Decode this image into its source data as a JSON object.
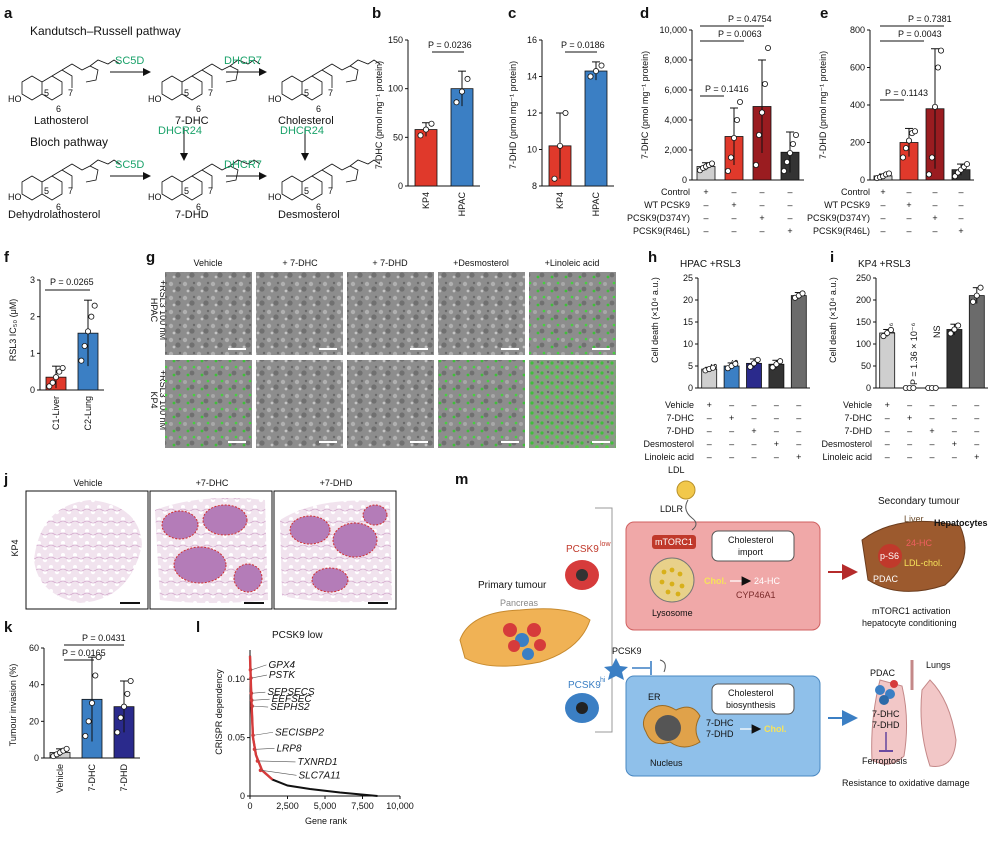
{
  "panels": {
    "a": {
      "label": "a",
      "kr_title": "Kandutsch–Russell pathway",
      "bloch_title": "Bloch pathway",
      "enzymes": {
        "sc5d_top": "SC5D",
        "dhcr7_top": "DHCR7",
        "dhcr24_left": "DHCR24",
        "dhcr24_right": "DHCR24",
        "sc5d_bottom": "SC5D",
        "dhcr7_bottom": "DHCR7"
      },
      "compounds": {
        "lathosterol": "Lathosterol",
        "dhc": "7-DHC",
        "cholesterol": "Cholesterol",
        "dehydrolathosterol": "Dehydrolathosterol",
        "dhd": "7-DHD",
        "desmosterol": "Desmosterol"
      },
      "ho": "HO",
      "ring_numbers": [
        "5",
        "6",
        "7"
      ]
    },
    "b": {
      "label": "b",
      "ylabel": "7-DHC (pmol mg⁻¹ protein)",
      "p": "P = 0.0236"
    },
    "c": {
      "label": "c",
      "ylabel": "7-DHD (pmol mg⁻¹ protein)",
      "p": "P = 0.0186"
    },
    "d": {
      "label": "d",
      "ylabel": "7-DHC (pmol mg⁻¹ protein)",
      "p1": "P = 0.4754",
      "p2": "P = 0.0063",
      "p3": "P = 0.1416",
      "rows": [
        "Control",
        "WT PCSK9",
        "PCSK9(D374Y)",
        "PCSK9(R46L)"
      ]
    },
    "e": {
      "label": "e",
      "ylabel": "7-DHD (pmol mg⁻¹ protein)",
      "p1": "P = 0.7381",
      "p2": "P = 0.0043",
      "p3": "P = 0.1143",
      "rows": [
        "Control",
        "WT PCSK9",
        "PCSK9(D374Y)",
        "PCSK9(R46L)"
      ]
    },
    "f": {
      "label": "f",
      "ylabel": "RSL3 IC₅₀ (μM)",
      "p": "P = 0.0265"
    },
    "g": {
      "label": "g",
      "cols": [
        "Vehicle",
        "+ 7-DHC",
        "+ 7-DHD",
        "+Desmosterol",
        "+Linoleic acid"
      ],
      "row1": "HPAC",
      "row1b": "+RSL3 100 nM",
      "row2": "KP4",
      "row2b": "+RSL3 100 nM"
    },
    "h": {
      "label": "h",
      "title": "HPAC +RSL3",
      "ylabel": "Cell death (×10⁴ a.u.)",
      "ns": "NS",
      "pval": "P = 5.84 × 10⁻⁶",
      "rows": [
        "Vehicle",
        "7-DHC",
        "7-DHD",
        "Desmosterol",
        "Linoleic acid"
      ]
    },
    "i": {
      "label": "i",
      "title": "KP4 +RSL3",
      "ylabel": "Cell death (×10⁴ a.u.)",
      "ns": "NS",
      "p1": "P = 1.38 × 10⁻⁶",
      "p2": "P = 1.36 × 10⁻⁶",
      "p3": "P = 4.07 × 10⁻⁵",
      "rows": [
        "Vehicle",
        "7-DHC",
        "7-DHD",
        "Desmosterol",
        "Linoleic acid"
      ]
    },
    "j": {
      "label": "j",
      "cols": [
        "Vehicle",
        "+7-DHC",
        "+7-DHD"
      ],
      "row": "KP4"
    },
    "k": {
      "label": "k",
      "ylabel": "Tumour invasion (%)",
      "p1": "P = 0.0431",
      "p2": "P = 0.0165"
    },
    "l": {
      "label": "l",
      "title": "PCSK9 low",
      "ylabel": "CRISPR dependency",
      "xlabel": "Gene rank",
      "genes": [
        "GPX4",
        "PSTK",
        "SEPSECS",
        "EEFSEC",
        "SEPHS2",
        "SECISBP2",
        "LRP8",
        "TXNRD1",
        "SLC7A11"
      ]
    },
    "m": {
      "label": "m",
      "ldl": "LDL",
      "ldlr": "LDLR",
      "pcsk9_low": "PCSK9",
      "pcsk9_low_sup": "low",
      "mtorc1": "mTORC1",
      "chol_import": "Cholesterol",
      "chol_import2": "import",
      "chol": "Chol.",
      "hc24": "24-HC",
      "cyp": "CYP46A1",
      "lysosome": "Lysosome",
      "secondary": "Secondary tumour",
      "liver": "Liver",
      "hepatocytes": "Hepatocytes",
      "ps6": "p-S6",
      "hc24b": "24-HC",
      "ldlchol": "LDL-chol.",
      "pdac1": "PDAC",
      "mtor_act": "mTORC1 activation",
      "hep_cond": "hepatocyte conditioning",
      "primary": "Primary tumour",
      "pancreas": "Pancreas",
      "pcsk9": "PCSK9",
      "pcsk9_hi": "PCSK9",
      "pcsk9_hi_sup": "hi",
      "er": "ER",
      "chol_bio": "Cholesterol",
      "chol_bio2": "biosynthesis",
      "dhc": "7-DHC",
      "dhd": "7-DHD",
      "chol2": "Chol.",
      "nucleus": "Nucleus",
      "lungs": "Lungs",
      "pdac2": "PDAC",
      "ldhc": "7-DHC",
      "ldhd": "7-DHD",
      "ferroptosis": "Ferroptosis",
      "resistance": "Resistance to oxidative damage"
    }
  },
  "chart_data": [
    {
      "id": "b",
      "type": "bar",
      "categories": [
        "KP4",
        "HPAC"
      ],
      "values": [
        58,
        100
      ],
      "errors": [
        7,
        18
      ],
      "points": [
        [
          52,
          58,
          64
        ],
        [
          86,
          97,
          110
        ]
      ],
      "ylabel": "7-DHC (pmol mg⁻¹ protein)",
      "ylim": [
        0,
        150
      ],
      "yticks": [
        0,
        50,
        100,
        150
      ],
      "colors": [
        "#e0392b",
        "#3b7fc4"
      ]
    },
    {
      "id": "c",
      "type": "bar",
      "categories": [
        "KP4",
        "HPAC"
      ],
      "values": [
        10.2,
        14.3
      ],
      "errors": [
        1.8,
        0.5
      ],
      "points": [
        [
          8.4,
          10.2,
          12.0
        ],
        [
          14.0,
          14.3,
          14.6
        ]
      ],
      "ylabel": "7-DHD (pmol mg⁻¹ protein)",
      "ylim": [
        8,
        16
      ],
      "yticks": [
        8,
        10,
        12,
        14,
        16
      ],
      "colors": [
        "#e0392b",
        "#3b7fc4"
      ]
    },
    {
      "id": "d",
      "type": "bar",
      "categories": [
        "Control",
        "WT PCSK9",
        "PCSK9(D374Y)",
        "PCSK9(R46L)"
      ],
      "values": [
        900,
        2900,
        4900,
        1850
      ],
      "errors": [
        250,
        1900,
        3100,
        1350
      ],
      "points": [
        [
          650,
          800,
          900,
          1000,
          1100
        ],
        [
          600,
          1500,
          2800,
          4000,
          5200
        ],
        [
          1000,
          3000,
          4500,
          6400,
          8800
        ],
        [
          600,
          1200,
          1800,
          2400,
          3000
        ]
      ],
      "ylabel": "7-DHC (pmol mg⁻¹ protein)",
      "ylim": [
        0,
        10000
      ],
      "yticks": [
        0,
        2000,
        4000,
        6000,
        8000,
        10000
      ],
      "colors": [
        "#cfcfcf",
        "#e0392b",
        "#9a1c20",
        "#333333"
      ]
    },
    {
      "id": "e",
      "type": "bar",
      "categories": [
        "Control",
        "WT PCSK9",
        "PCSK9(D374Y)",
        "PCSK9(R46L)"
      ],
      "values": [
        22,
        200,
        380,
        55
      ],
      "errors": [
        10,
        75,
        320,
        30
      ],
      "points": [
        [
          10,
          15,
          20,
          30,
          35
        ],
        [
          120,
          170,
          210,
          250,
          260
        ],
        [
          30,
          120,
          390,
          600,
          690
        ],
        [
          20,
          40,
          55,
          70,
          85
        ]
      ],
      "ylabel": "7-DHD (pmol mg⁻¹ protein)",
      "ylim": [
        0,
        800
      ],
      "yticks": [
        0,
        200,
        400,
        600,
        800
      ],
      "colors": [
        "#cfcfcf",
        "#e0392b",
        "#9a1c20",
        "#333333"
      ]
    },
    {
      "id": "f",
      "type": "bar",
      "categories": [
        "C1-Liver",
        "C2-Lung"
      ],
      "values": [
        0.35,
        1.55
      ],
      "errors": [
        0.3,
        0.9
      ],
      "points": [
        [
          0.1,
          0.2,
          0.35,
          0.5,
          0.6
        ],
        [
          0.8,
          1.2,
          1.6,
          2.0,
          2.3
        ]
      ],
      "ylabel": "RSL3 IC₅₀ (μM)",
      "ylim": [
        0,
        3
      ],
      "yticks": [
        0,
        1,
        2,
        3
      ],
      "colors": [
        "#e0392b",
        "#3b7fc4"
      ]
    },
    {
      "id": "h",
      "type": "bar",
      "categories": [
        "Vehicle",
        "7-DHC",
        "7-DHD",
        "Desmosterol",
        "Linoleic acid"
      ],
      "values": [
        4.3,
        5.0,
        5.6,
        5.4,
        21.0
      ],
      "errors": [
        0.4,
        0.7,
        1.0,
        0.9,
        0.7
      ],
      "points": [
        [
          4.0,
          4.3,
          4.6
        ],
        [
          4.5,
          5.0,
          5.5
        ],
        [
          4.8,
          5.6,
          6.4
        ],
        [
          4.7,
          5.4,
          6.1
        ],
        [
          20.5,
          21.0,
          21.5
        ]
      ],
      "ylabel": "Cell death (×10⁴ a.u.)",
      "ylim": [
        0,
        25
      ],
      "yticks": [
        0,
        5,
        10,
        15,
        20,
        25
      ],
      "colors": [
        "#cfcfcf",
        "#3b7fc4",
        "#2a2a8c",
        "#333333",
        "#6b6b6b"
      ]
    },
    {
      "id": "i",
      "type": "bar",
      "categories": [
        "Vehicle",
        "7-DHC",
        "7-DHD",
        "Desmosterol",
        "Linoleic acid"
      ],
      "values": [
        125,
        0,
        0,
        133,
        210
      ],
      "errors": [
        8,
        0,
        0,
        12,
        18
      ],
      "points": [
        [
          118,
          125,
          132
        ],
        [
          0,
          0,
          0
        ],
        [
          0,
          0,
          0
        ],
        [
          124,
          133,
          142
        ],
        [
          196,
          210,
          228
        ]
      ],
      "ylabel": "Cell death (×10⁴ a.u.)",
      "ylim": [
        0,
        250
      ],
      "yticks": [
        0,
        50,
        100,
        150,
        200,
        250
      ],
      "colors": [
        "#cfcfcf",
        "#3b7fc4",
        "#2a2a8c",
        "#333333",
        "#6b6b6b"
      ]
    },
    {
      "id": "k",
      "type": "bar",
      "categories": [
        "Vehicle",
        "7-DHC",
        "7-DHD"
      ],
      "values": [
        3,
        32,
        28
      ],
      "errors": [
        2,
        23,
        14
      ],
      "points": [
        [
          1,
          2,
          3,
          4,
          5
        ],
        [
          12,
          20,
          30,
          45,
          55
        ],
        [
          14,
          22,
          28,
          35,
          42
        ]
      ],
      "ylabel": "Tumour invasion (%)",
      "ylim": [
        0,
        60
      ],
      "yticks": [
        0,
        20,
        40,
        60
      ],
      "colors": [
        "#cfcfcf",
        "#3b7fc4",
        "#2a2a8c"
      ]
    },
    {
      "id": "l",
      "type": "line",
      "title": "PCSK9 low",
      "xlabel": "Gene rank",
      "ylabel": "CRISPR dependency",
      "xlim": [
        0,
        10000
      ],
      "ylim": [
        0,
        0.125
      ],
      "xticks": [
        0,
        2500,
        5000,
        7500,
        10000
      ],
      "yticks": [
        0,
        0.05,
        0.1
      ],
      "x": [
        0,
        100,
        200,
        400,
        800,
        1500,
        2500,
        4000,
        6000,
        8500
      ],
      "y": [
        0.12,
        0.08,
        0.05,
        0.035,
        0.022,
        0.014,
        0.009,
        0.006,
        0.003,
        0.0
      ],
      "highlight": [
        {
          "name": "GPX4",
          "x": 30,
          "y": 0.108
        },
        {
          "name": "PSTK",
          "x": 60,
          "y": 0.101
        },
        {
          "name": "SEPSECS",
          "x": 90,
          "y": 0.088
        },
        {
          "name": "EEFSEC",
          "x": 110,
          "y": 0.082
        },
        {
          "name": "SEPHS2",
          "x": 140,
          "y": 0.077
        },
        {
          "name": "SECISBP2",
          "x": 200,
          "y": 0.052
        },
        {
          "name": "LRP8",
          "x": 300,
          "y": 0.04
        },
        {
          "name": "TXNRD1",
          "x": 500,
          "y": 0.03
        },
        {
          "name": "SLC7A11",
          "x": 700,
          "y": 0.022
        }
      ]
    }
  ]
}
